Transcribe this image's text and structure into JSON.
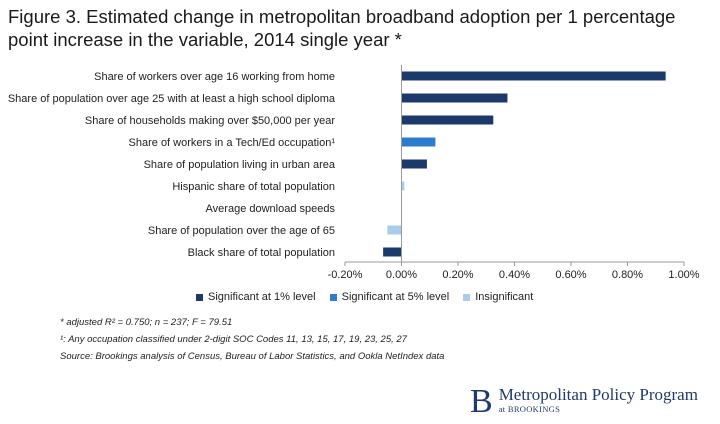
{
  "title": "Figure 3. Estimated change in metropolitan broadband adoption per 1 percentage point increase in the variable, 2014 single year *",
  "colors": {
    "sig1": "#1b3a6b",
    "sig5": "#2e7ccf",
    "insig": "#a8ccea",
    "axis": "#9a9a9a",
    "brand": "#1f3a6e"
  },
  "legend": {
    "sig1": "Significant at 1% level",
    "sig5": "Significant at 5% level",
    "insig": "Insignificant"
  },
  "notes": {
    "stats": "* adjusted R² = 0.750; n = 237; F = 79.51",
    "occupation": "¹: Any occupation classified under 2-digit SOC Codes 11, 13, 15, 17, 19, 23, 25, 27",
    "source": "Source: Brookings analysis of Census, Bureau of Labor Statistics, and Ookla NetIndex data"
  },
  "brand": {
    "logo_letter": "B",
    "name": "Metropolitan Policy Program",
    "sub": "at BROOKINGS"
  },
  "chart_data": {
    "type": "bar",
    "orientation": "horizontal",
    "categories": [
      "Share of workers over age 16 working from home",
      "Share of population over age 25 with at least a high school diploma",
      "Share of households making over $50,000 per year",
      "Share of workers in a Tech/Ed occupation¹",
      "Share of population living in urban area",
      "Hispanic share of total population",
      "Average download speeds",
      "Share of population over the age of 65",
      "Black share of total population"
    ],
    "values": [
      0.935,
      0.375,
      0.325,
      0.12,
      0.09,
      0.01,
      0.0,
      -0.05,
      -0.065
    ],
    "significance": [
      "sig1",
      "sig1",
      "sig1",
      "sig5",
      "sig1",
      "insig",
      "insig",
      "insig",
      "sig1"
    ],
    "xlim": [
      -0.2,
      1.0
    ],
    "xticks": [
      -0.2,
      0.0,
      0.2,
      0.4,
      0.6,
      0.8,
      1.0
    ],
    "xtick_labels": [
      "-0.20%",
      "0.00%",
      "0.20%",
      "0.40%",
      "0.60%",
      "0.80%",
      "1.00%"
    ],
    "xlabel": "",
    "ylabel": "",
    "grid": false,
    "legend_position": "bottom"
  }
}
